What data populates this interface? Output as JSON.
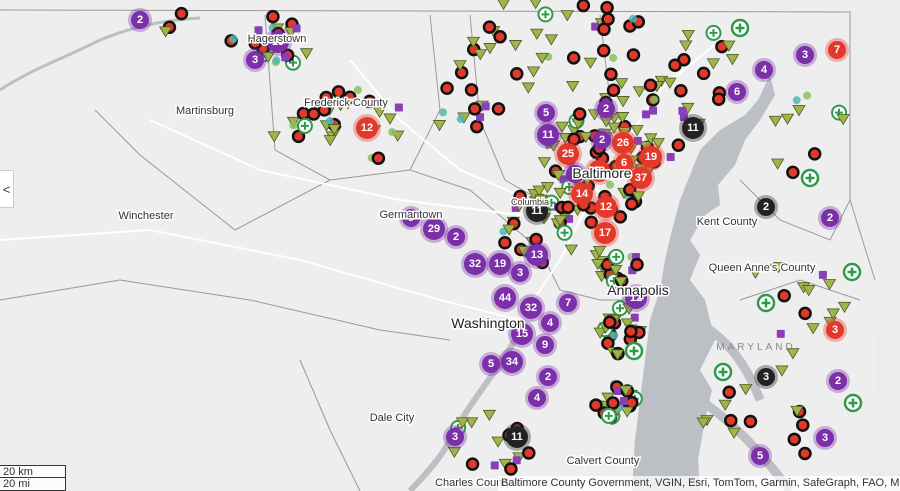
{
  "map": {
    "places": [
      "Hagerstown",
      "Frederick County",
      "Martinsburg",
      "Winchester",
      "Germantown",
      "Washington",
      "Dale City",
      "Baltimore",
      "Columbia",
      "Kent County",
      "Queen Anne's County",
      "Annapolis",
      "MARYLAND",
      "Calvert County",
      "Charles County"
    ],
    "clusters": [
      {
        "label": "2",
        "color": "#7b2fa8"
      },
      {
        "label": "19",
        "color": "#7b2fa8"
      },
      {
        "label": "3",
        "color": "#7b2fa8"
      },
      {
        "label": "12",
        "color": "#e2392b"
      },
      {
        "label": "5",
        "color": "#7b2fa8"
      },
      {
        "label": "11",
        "color": "#7b2fa8"
      },
      {
        "label": "2",
        "color": "#7b2fa8"
      },
      {
        "label": "25",
        "color": "#e2392b"
      },
      {
        "label": "26",
        "color": "#e2392b"
      },
      {
        "label": "2",
        "color": "#7b2fa8"
      },
      {
        "label": "6",
        "color": "#e2392b"
      },
      {
        "label": "19",
        "color": "#e2392b"
      },
      {
        "label": "37",
        "color": "#e2392b"
      },
      {
        "label": "13",
        "color": "#e2392b"
      },
      {
        "label": "2",
        "color": "#7b2fa8"
      },
      {
        "label": "14",
        "color": "#e2392b"
      },
      {
        "label": "12",
        "color": "#e2392b"
      },
      {
        "label": "17",
        "color": "#e2392b"
      },
      {
        "label": "9",
        "color": "#7b2fa8"
      },
      {
        "label": "29",
        "color": "#7b2fa8"
      },
      {
        "label": "2",
        "color": "#7b2fa8"
      },
      {
        "label": "32",
        "color": "#7b2fa8"
      },
      {
        "label": "19",
        "color": "#7b2fa8"
      },
      {
        "label": "3",
        "color": "#7b2fa8"
      },
      {
        "label": "13",
        "color": "#7b2fa8"
      },
      {
        "label": "44",
        "color": "#7b2fa8"
      },
      {
        "label": "32",
        "color": "#7b2fa8"
      },
      {
        "label": "7",
        "color": "#7b2fa8"
      },
      {
        "label": "15",
        "color": "#7b2fa8"
      },
      {
        "label": "4",
        "color": "#7b2fa8"
      },
      {
        "label": "9",
        "color": "#7b2fa8"
      },
      {
        "label": "5",
        "color": "#7b2fa8"
      },
      {
        "label": "34",
        "color": "#7b2fa8"
      },
      {
        "label": "2",
        "color": "#7b2fa8"
      },
      {
        "label": "4",
        "color": "#7b2fa8"
      },
      {
        "label": "3",
        "color": "#7b2fa8"
      },
      {
        "label": "11",
        "color": "#222222"
      },
      {
        "label": "3",
        "color": "#7b2fa8"
      },
      {
        "label": "7",
        "color": "#e2392b"
      },
      {
        "label": "4",
        "color": "#7b2fa8"
      },
      {
        "label": "6",
        "color": "#7b2fa8"
      },
      {
        "label": "11",
        "color": "#222222"
      },
      {
        "label": "2",
        "color": "#222222"
      },
      {
        "label": "2",
        "color": "#7b2fa8"
      },
      {
        "label": "3",
        "color": "#e2392b"
      },
      {
        "label": "3",
        "color": "#222222"
      },
      {
        "label": "2",
        "color": "#7b2fa8"
      },
      {
        "label": "3",
        "color": "#7b2fa8"
      },
      {
        "label": "5",
        "color": "#7b2fa8"
      },
      {
        "label": "12",
        "color": "#7b2fa8"
      },
      {
        "label": "11",
        "color": "#222222"
      }
    ],
    "scale": [
      "20 km",
      "20 mi"
    ],
    "attribution": "Baltimore County Government, VGIN, Esri, TomTom, Garmin, SafeGraph, FAO, M",
    "collapse_button": "<"
  }
}
